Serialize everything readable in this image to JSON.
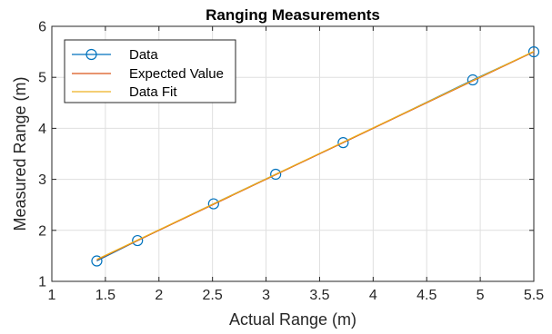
{
  "chart_data": {
    "type": "line",
    "title": "Ranging Measurements",
    "xlabel": "Actual Range (m)",
    "ylabel": "Measured Range (m)",
    "xlim": [
      1,
      5.5
    ],
    "ylim": [
      1,
      6
    ],
    "xticks": [
      "1",
      "1.5",
      "2",
      "2.5",
      "3",
      "3.5",
      "4",
      "4.5",
      "5",
      "5.5"
    ],
    "yticks": [
      "1",
      "2",
      "3",
      "4",
      "5",
      "6"
    ],
    "grid": true,
    "legend_position": "top-left",
    "series": [
      {
        "name": "Data",
        "style": "line-with-circle-markers",
        "color": "#0072BD",
        "x": [
          1.42,
          1.8,
          2.51,
          3.09,
          3.72,
          4.93,
          5.5
        ],
        "y": [
          1.4,
          1.8,
          2.52,
          3.1,
          3.72,
          4.95,
          5.5
        ]
      },
      {
        "name": "Expected Value",
        "style": "line",
        "color": "#D95319",
        "x": [
          1.42,
          5.5
        ],
        "y": [
          1.42,
          5.5
        ]
      },
      {
        "name": "Data Fit",
        "style": "line",
        "color": "#EDB120",
        "x": [
          1.42,
          5.5
        ],
        "y": [
          1.43,
          5.51
        ]
      }
    ]
  }
}
